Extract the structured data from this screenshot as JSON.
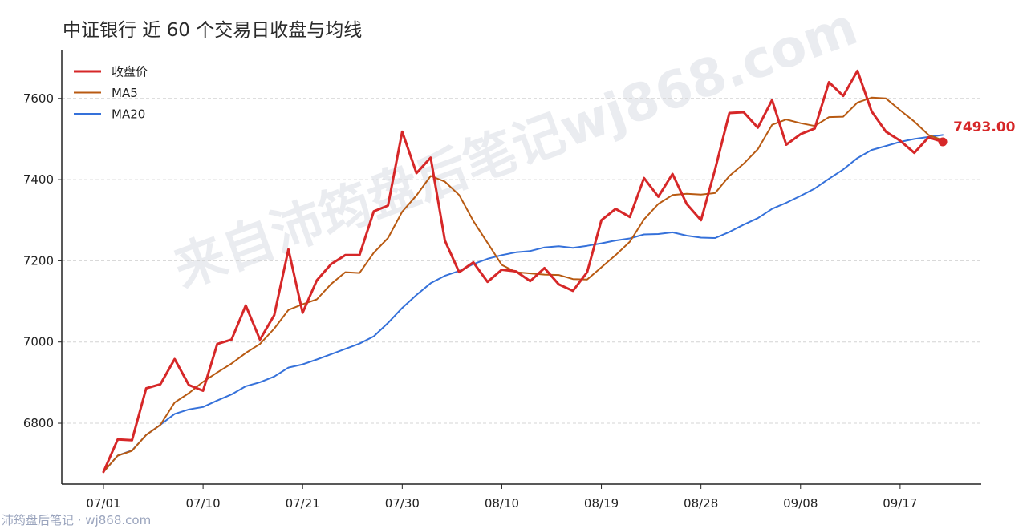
{
  "page": {
    "title": "中证银行 近 60 个交易日收盘与均线"
  },
  "watermark": {
    "center": "来自沛筠盘后笔记wj868.com",
    "footer": "沛筠盘后笔记 · wj868.com"
  },
  "chart_data": {
    "type": "line",
    "title": "中证银行 近 60 个交易日收盘与均线",
    "xlabel": "",
    "ylabel": "",
    "ylim": [
      6650,
      7720
    ],
    "yticks": [
      6800,
      7000,
      7200,
      7400,
      7600
    ],
    "grid": "horizontal dashed",
    "legend_position": "top-left",
    "x_tick_labels": [
      {
        "index": 0,
        "label": "07/01"
      },
      {
        "index": 7,
        "label": "07/10"
      },
      {
        "index": 14,
        "label": "07/21"
      },
      {
        "index": 21,
        "label": "07/30"
      },
      {
        "index": 28,
        "label": "08/10"
      },
      {
        "index": 35,
        "label": "08/19"
      },
      {
        "index": 42,
        "label": "08/28"
      },
      {
        "index": 49,
        "label": "09/08"
      },
      {
        "index": 56,
        "label": "09/17"
      }
    ],
    "last_value_label": "7493.00",
    "series": [
      {
        "name": "收盘价",
        "color": "#d62728",
        "width": 3,
        "values": [
          6680,
          6760,
          6758,
          6886,
          6896,
          6958,
          6894,
          6880,
          6995,
          7006,
          7090,
          7006,
          7066,
          7228,
          7072,
          7152,
          7192,
          7214,
          7214,
          7322,
          7336,
          7518,
          7416,
          7454,
          7250,
          7172,
          7196,
          7148,
          7178,
          7174,
          7150,
          7182,
          7142,
          7126,
          7172,
          7300,
          7328,
          7308,
          7404,
          7358,
          7414,
          7340,
          7300,
          7426,
          7564,
          7566,
          7528,
          7596,
          7486,
          7512,
          7526,
          7640,
          7606,
          7668,
          7568,
          7518,
          7496,
          7466,
          7504,
          7493
        ]
      },
      {
        "name": "MA5",
        "color": "#b85a12",
        "width": 2,
        "values": [
          6680,
          6720,
          6732,
          6771,
          6796,
          6851,
          6874,
          6902,
          6925,
          6947,
          6973,
          6995,
          7033,
          7079,
          7093,
          7105,
          7143,
          7172,
          7170,
          7220,
          7256,
          7321,
          7361,
          7409,
          7395,
          7362,
          7298,
          7244,
          7190,
          7172,
          7169,
          7166,
          7165,
          7155,
          7154,
          7184,
          7214,
          7247,
          7302,
          7340,
          7362,
          7365,
          7363,
          7367,
          7409,
          7439,
          7475,
          7535,
          7548,
          7539,
          7532,
          7554,
          7555,
          7590,
          7602,
          7600,
          7571,
          7543,
          7510,
          7497
        ]
      },
      {
        "name": "MA20",
        "color": "#3571da",
        "width": 2,
        "values": [
          6680,
          6720,
          6733,
          6771,
          6796,
          6823,
          6834,
          6840,
          6856,
          6871,
          6891,
          6901,
          6915,
          6937,
          6945,
          6957,
          6970,
          6983,
          6996,
          7014,
          7047,
          7084,
          7116,
          7145,
          7163,
          7175,
          7192,
          7205,
          7214,
          7221,
          7224,
          7233,
          7236,
          7232,
          7237,
          7243,
          7250,
          7255,
          7265,
          7266,
          7270,
          7262,
          7257,
          7256,
          7271,
          7289,
          7305,
          7328,
          7343,
          7360,
          7378,
          7402,
          7425,
          7453,
          7473,
          7483,
          7493,
          7500,
          7505,
          7510
        ]
      }
    ]
  }
}
